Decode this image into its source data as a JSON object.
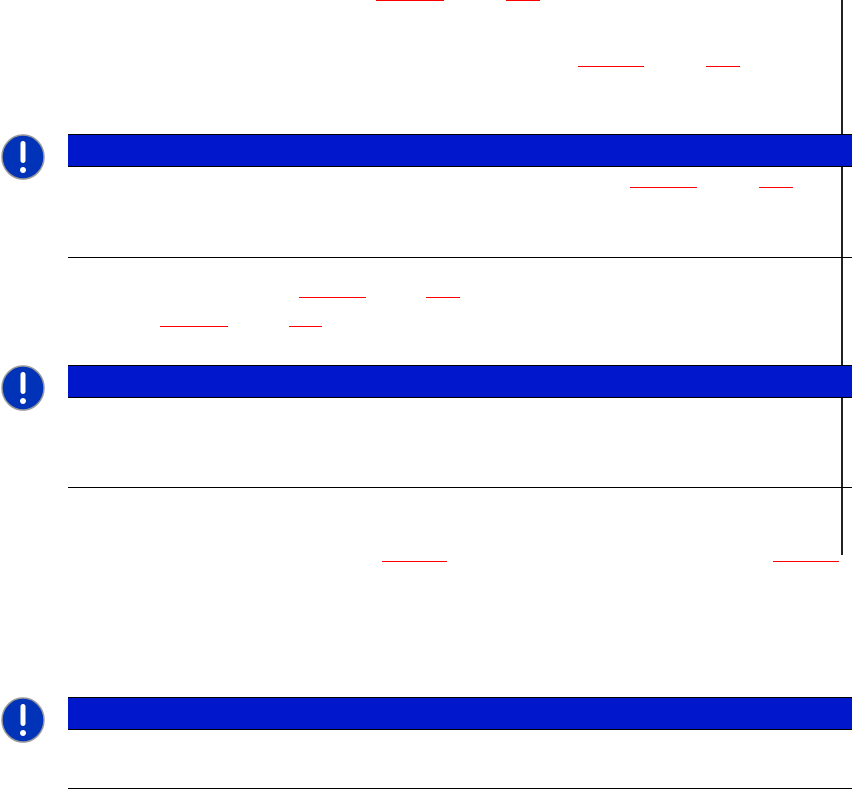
{
  "colors": {
    "notice_bar": "#0017cc",
    "link_underline": "#ff0000",
    "icon_fill": "#0033b8"
  },
  "notices": [
    {
      "icon": "exclamation-icon"
    },
    {
      "icon": "exclamation-icon"
    },
    {
      "icon": "exclamation-icon"
    }
  ]
}
